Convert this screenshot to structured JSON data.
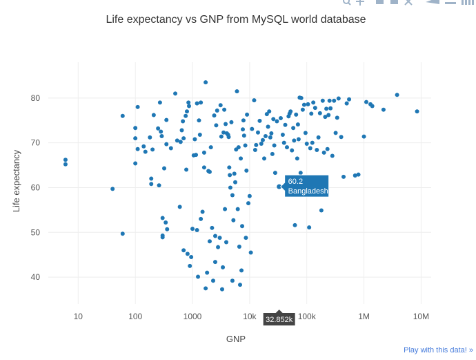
{
  "modebar": {
    "icons": [
      "zoom-icon",
      "pan-icon",
      "zoom-in-icon",
      "zoom-out-icon",
      "autoscale-icon",
      "hover-closest-icon",
      "hover-compare-icon",
      "plotly-logo-icon"
    ]
  },
  "play_link": "Play with this data! »",
  "chart_data": {
    "type": "scatter",
    "title": "Life expectancy vs GNP from MySQL world database",
    "xlabel": "GNP",
    "ylabel": "Life expectancy",
    "xscale": "log",
    "xlim": [
      3,
      15000000
    ],
    "ylim": [
      34,
      88
    ],
    "xticks": [
      {
        "value": 10,
        "label": "10"
      },
      {
        "value": 100,
        "label": "100"
      },
      {
        "value": 1000,
        "label": "1000"
      },
      {
        "value": 10000,
        "label": "10k"
      },
      {
        "value": 100000,
        "label": "100k"
      },
      {
        "value": 1000000,
        "label": "1M"
      },
      {
        "value": 10000000,
        "label": "10M"
      }
    ],
    "yticks": [
      40,
      50,
      60,
      70,
      80
    ],
    "grid": true,
    "color": "#1f77b4",
    "hover": {
      "x": 32852,
      "y": 60.2,
      "name": "Bangladesh",
      "x_label": "32.852k",
      "y_label": "60.2"
    },
    "points": [
      [
        6,
        66.2
      ],
      [
        6,
        65.2
      ],
      [
        40,
        59.7
      ],
      [
        60,
        49.7
      ],
      [
        60,
        76
      ],
      [
        100,
        73.3
      ],
      [
        100,
        71
      ],
      [
        100,
        65.4
      ],
      [
        110,
        68.6
      ],
      [
        110,
        78
      ],
      [
        140,
        69.2
      ],
      [
        150,
        68
      ],
      [
        180,
        71.2
      ],
      [
        190,
        62
      ],
      [
        190,
        60.8
      ],
      [
        200,
        68.5
      ],
      [
        210,
        76.2
      ],
      [
        250,
        73.2
      ],
      [
        260,
        60.5
      ],
      [
        270,
        79
      ],
      [
        280,
        72.5
      ],
      [
        290,
        71.5
      ],
      [
        300,
        48.9
      ],
      [
        300,
        49.3
      ],
      [
        300,
        53.2
      ],
      [
        320,
        64.3
      ],
      [
        340,
        52.2
      ],
      [
        350,
        69.7
      ],
      [
        350,
        75.1
      ],
      [
        360,
        50.7
      ],
      [
        420,
        68.8
      ],
      [
        500,
        81
      ],
      [
        540,
        70.5
      ],
      [
        600,
        55.7
      ],
      [
        620,
        70.2
      ],
      [
        650,
        72.8
      ],
      [
        680,
        74.8
      ],
      [
        700,
        71
      ],
      [
        700,
        46
      ],
      [
        760,
        76
      ],
      [
        780,
        64
      ],
      [
        800,
        77
      ],
      [
        820,
        45.2
      ],
      [
        850,
        79
      ],
      [
        870,
        78.2
      ],
      [
        900,
        42.5
      ],
      [
        950,
        44.5
      ],
      [
        1000,
        50.8
      ],
      [
        1050,
        67.2
      ],
      [
        1100,
        70.8
      ],
      [
        1150,
        67.3
      ],
      [
        1200,
        78.8
      ],
      [
        1200,
        50.5
      ],
      [
        1250,
        40.1
      ],
      [
        1300,
        75
      ],
      [
        1350,
        71.8
      ],
      [
        1400,
        79
      ],
      [
        1400,
        53
      ],
      [
        1500,
        54.6
      ],
      [
        1600,
        64.5
      ],
      [
        1600,
        67.8
      ],
      [
        1700,
        83.5
      ],
      [
        1700,
        37.5
      ],
      [
        1800,
        41
      ],
      [
        1900,
        63.7
      ],
      [
        2000,
        63.5
      ],
      [
        2000,
        48
      ],
      [
        2100,
        69
      ],
      [
        2200,
        51
      ],
      [
        2300,
        39.2
      ],
      [
        2400,
        76.1
      ],
      [
        2500,
        43.4
      ],
      [
        2500,
        49.2
      ],
      [
        2600,
        73.9
      ],
      [
        2700,
        77.2
      ],
      [
        2800,
        46.7
      ],
      [
        3000,
        48.8
      ],
      [
        3100,
        78.4
      ],
      [
        3200,
        71.4
      ],
      [
        3300,
        37.3
      ],
      [
        3400,
        42.2
      ],
      [
        3500,
        72.3
      ],
      [
        3600,
        77.4
      ],
      [
        3700,
        55.2
      ],
      [
        3800,
        74.2
      ],
      [
        3900,
        47.8
      ],
      [
        4000,
        72.1
      ],
      [
        4200,
        71.8
      ],
      [
        4300,
        71.3
      ],
      [
        4400,
        64.5
      ],
      [
        4500,
        62.8
      ],
      [
        4600,
        60
      ],
      [
        4800,
        74.6
      ],
      [
        5000,
        58.3
      ],
      [
        5000,
        39.2
      ],
      [
        5200,
        52.7
      ],
      [
        5400,
        63.1
      ],
      [
        5600,
        61.2
      ],
      [
        5800,
        68.5
      ],
      [
        6000,
        81.5
      ],
      [
        6200,
        55.2
      ],
      [
        6400,
        69
      ],
      [
        6600,
        46.8
      ],
      [
        6800,
        38.3
      ],
      [
        7000,
        66.5
      ],
      [
        7200,
        41.5
      ],
      [
        7400,
        51.4
      ],
      [
        7600,
        73
      ],
      [
        7800,
        75
      ],
      [
        8000,
        71.6
      ],
      [
        8400,
        69.4
      ],
      [
        8600,
        48.8
      ],
      [
        8800,
        63.8
      ],
      [
        9000,
        76.3
      ],
      [
        9500,
        56.5
      ],
      [
        10000,
        58.1
      ],
      [
        10500,
        45.5
      ],
      [
        11000,
        73.1
      ],
      [
        12000,
        79.5
      ],
      [
        12500,
        68.4
      ],
      [
        13000,
        69.5
      ],
      [
        14000,
        72.3
      ],
      [
        15000,
        74.9
      ],
      [
        16000,
        69.8
      ],
      [
        17000,
        70.6
      ],
      [
        18000,
        66.5
      ],
      [
        19000,
        71.5
      ],
      [
        20000,
        76.4
      ],
      [
        21000,
        73.6
      ],
      [
        22000,
        77
      ],
      [
        23000,
        71.2
      ],
      [
        24000,
        72.1
      ],
      [
        25000,
        67.5
      ],
      [
        26000,
        75.3
      ],
      [
        27000,
        69.4
      ],
      [
        28000,
        63.3
      ],
      [
        30000,
        74.8
      ],
      [
        32852,
        60.2
      ],
      [
        35000,
        75.5
      ],
      [
        38000,
        71.8
      ],
      [
        40000,
        70
      ],
      [
        42000,
        74
      ],
      [
        45000,
        69
      ],
      [
        48000,
        75.9
      ],
      [
        50000,
        76.5
      ],
      [
        52000,
        77
      ],
      [
        55000,
        68.3
      ],
      [
        58000,
        73.3
      ],
      [
        60000,
        70.5
      ],
      [
        62000,
        51.6
      ],
      [
        65000,
        76.3
      ],
      [
        68000,
        66.5
      ],
      [
        70000,
        74.1
      ],
      [
        72000,
        70.8
      ],
      [
        75000,
        80.1
      ],
      [
        78000,
        63.3
      ],
      [
        80000,
        80
      ],
      [
        85000,
        77.4
      ],
      [
        90000,
        78.5
      ],
      [
        95000,
        72.2
      ],
      [
        100000,
        69.8
      ],
      [
        105000,
        78.6
      ],
      [
        110000,
        51.1
      ],
      [
        115000,
        68.8
      ],
      [
        120000,
        76.5
      ],
      [
        125000,
        70
      ],
      [
        130000,
        79
      ],
      [
        140000,
        77.8
      ],
      [
        150000,
        68.4
      ],
      [
        160000,
        71.2
      ],
      [
        170000,
        76.6
      ],
      [
        180000,
        54.9
      ],
      [
        190000,
        79.4
      ],
      [
        200000,
        67.8
      ],
      [
        210000,
        75.8
      ],
      [
        220000,
        77.6
      ],
      [
        230000,
        68.6
      ],
      [
        240000,
        76.2
      ],
      [
        250000,
        79.4
      ],
      [
        260000,
        77.7
      ],
      [
        280000,
        67.1
      ],
      [
        300000,
        79.4
      ],
      [
        320000,
        72.2
      ],
      [
        340000,
        75.6
      ],
      [
        360000,
        79.9
      ],
      [
        400000,
        71.3
      ],
      [
        440000,
        62.4
      ],
      [
        500000,
        78.8
      ],
      [
        550000,
        79.7
      ],
      [
        700000,
        62.7
      ],
      [
        800000,
        62.9
      ],
      [
        1000000,
        71.4
      ],
      [
        1100000,
        79.1
      ],
      [
        1300000,
        78.6
      ],
      [
        1400000,
        78.2
      ],
      [
        2200000,
        77.4
      ],
      [
        3800000,
        80.7
      ],
      [
        8500000,
        77
      ]
    ]
  }
}
